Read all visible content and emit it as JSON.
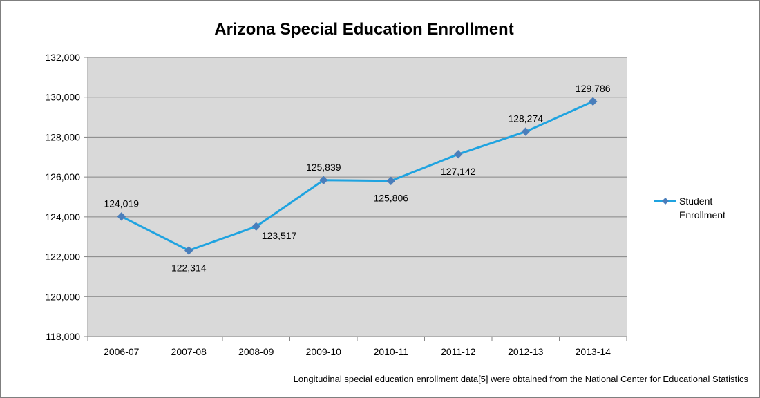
{
  "chart_data": {
    "type": "line",
    "title": "Arizona Special Education Enrollment",
    "xlabel": "",
    "ylabel": "",
    "categories": [
      "2006-07",
      "2007-08",
      "2008-09",
      "2009-10",
      "2010-11",
      "2011-12",
      "2012-13",
      "2013-14"
    ],
    "series": [
      {
        "name": "Student Enrollment",
        "values": [
          124019,
          122314,
          123517,
          125839,
          125806,
          127142,
          128274,
          129786
        ],
        "data_labels": [
          "124,019",
          "122,314",
          "123,517",
          "125,839",
          "125,806",
          "127,142",
          "128,274",
          "129,786"
        ],
        "color": "#1fa3e0",
        "marker": "diamond",
        "marker_color": "#4a7ebb"
      }
    ],
    "ylim": [
      118000,
      132000
    ],
    "yticks": [
      118000,
      120000,
      122000,
      124000,
      126000,
      128000,
      130000,
      132000
    ],
    "ytick_labels": [
      "118,000",
      "120,000",
      "122,000",
      "124,000",
      "126,000",
      "128,000",
      "130,000",
      "132,000"
    ],
    "grid": true,
    "plot_background": "#d9d9d9",
    "legend_position": "right"
  },
  "footnote": "Longitudinal special education enrollment data[5] were obtained from the National Center for Educational Statistics"
}
